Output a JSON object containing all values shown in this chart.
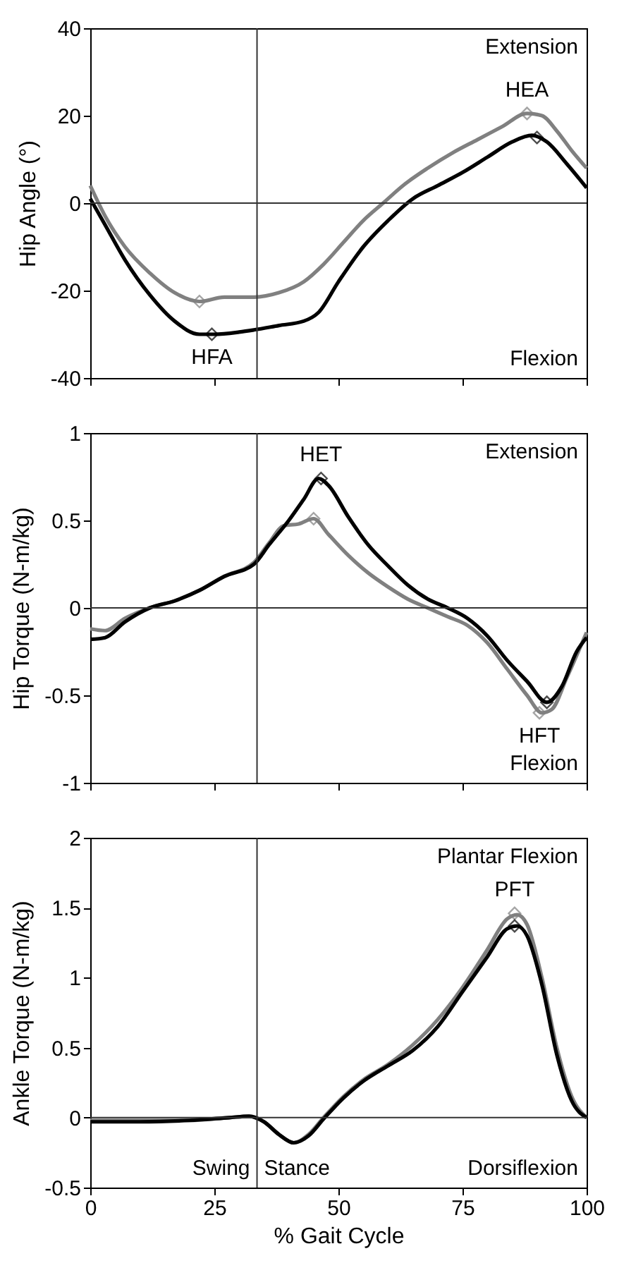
{
  "chart_data": [
    {
      "type": "line",
      "ylabel": "Hip Angle (°)",
      "xlim": [
        0,
        100
      ],
      "xticks": [
        0,
        25,
        50,
        75,
        100
      ],
      "ylim": [
        -40,
        40
      ],
      "yticks": [
        -40,
        -20,
        0,
        20,
        40
      ],
      "tick_labels": "y",
      "grid": false,
      "line_style": "solid",
      "series": [
        {
          "color": "#808080",
          "x": [
            0,
            3,
            7,
            12,
            17,
            22,
            27,
            33,
            38,
            43,
            47,
            51,
            55,
            59,
            63,
            68,
            73,
            78,
            83,
            88,
            91,
            94,
            97,
            100
          ],
          "values": [
            4,
            -3,
            -10,
            -16,
            -20.5,
            -22.5,
            -21.5,
            -21.5,
            -20.5,
            -18,
            -14,
            -9,
            -4,
            0,
            4,
            8,
            11.5,
            14.5,
            17.5,
            20.5,
            20,
            16.5,
            12,
            8
          ]
        },
        {
          "color": "#000000",
          "x": [
            0,
            3,
            7,
            12,
            17,
            22,
            25,
            30,
            33,
            38,
            43,
            46,
            50,
            55,
            60,
            65,
            70,
            75,
            80,
            85,
            89,
            92,
            96,
            100
          ],
          "values": [
            1,
            -5,
            -13,
            -21,
            -27,
            -30,
            -30,
            -29.5,
            -29,
            -28,
            -27,
            -25,
            -18,
            -10,
            -4,
            1,
            4,
            7,
            10.5,
            14,
            15.5,
            14,
            9,
            3.5
          ]
        },
        {
          "type": "scatter",
          "marker": "diamond",
          "color": "#808080",
          "x": [
            22,
            88
          ],
          "values": [
            -22.5,
            20.5
          ]
        },
        {
          "type": "scatter",
          "marker": "diamond",
          "color": "#000000",
          "x": [
            24.5,
            90
          ],
          "values": [
            -30,
            15
          ]
        }
      ],
      "ref_lines": [
        {
          "axis": "y",
          "value": 0
        },
        {
          "axis": "x",
          "value": 33.6
        }
      ],
      "annotations": [
        "Extension",
        "Flexion",
        {
          "text": "HFA",
          "x": 24.5,
          "y": -30
        },
        {
          "text": "HEA",
          "x": 88,
          "y": 20.5
        }
      ]
    },
    {
      "type": "line",
      "ylabel": "Hip Torque (N-m/kg)",
      "xlim": [
        0,
        100
      ],
      "xticks": [
        0,
        25,
        50,
        75,
        100
      ],
      "ylim": [
        -1,
        1
      ],
      "yticks": [
        -1,
        -0.5,
        0,
        0.5,
        1
      ],
      "tick_labels": "y",
      "grid": false,
      "line_style": "solid",
      "series": [
        {
          "color": "#808080",
          "x": [
            0,
            3,
            7,
            12,
            17,
            22,
            27,
            33,
            36,
            39,
            42,
            45,
            48,
            52,
            56,
            60,
            64,
            68,
            72,
            76,
            80,
            84,
            88,
            91,
            93,
            96,
            100
          ],
          "values": [
            -0.12,
            -0.13,
            -0.06,
            0,
            0.04,
            0.1,
            0.18,
            0.26,
            0.37,
            0.47,
            0.48,
            0.51,
            0.42,
            0.3,
            0.2,
            0.12,
            0.05,
            0,
            -0.05,
            -0.1,
            -0.2,
            -0.35,
            -0.5,
            -0.6,
            -0.58,
            -0.4,
            -0.14
          ]
        },
        {
          "color": "#000000",
          "x": [
            0,
            3,
            7,
            12,
            17,
            22,
            27,
            33,
            36,
            40,
            43,
            46,
            48,
            52,
            56,
            60,
            64,
            68,
            72,
            76,
            80,
            84,
            88,
            92,
            95,
            98,
            100
          ],
          "values": [
            -0.18,
            -0.17,
            -0.08,
            0,
            0.04,
            0.1,
            0.18,
            0.25,
            0.36,
            0.5,
            0.62,
            0.74,
            0.7,
            0.52,
            0.36,
            0.24,
            0.13,
            0.05,
            0,
            -0.06,
            -0.16,
            -0.3,
            -0.42,
            -0.54,
            -0.45,
            -0.25,
            -0.17
          ]
        },
        {
          "type": "scatter",
          "marker": "diamond",
          "color": "#808080",
          "x": [
            45,
            90.5
          ],
          "values": [
            0.51,
            -0.6
          ]
        },
        {
          "type": "scatter",
          "marker": "diamond",
          "color": "#000000",
          "x": [
            46.5,
            92
          ],
          "values": [
            0.74,
            -0.54
          ]
        }
      ],
      "ref_lines": [
        {
          "axis": "y",
          "value": 0
        },
        {
          "axis": "x",
          "value": 33.6
        }
      ],
      "annotations": [
        "Extension",
        "Flexion",
        {
          "text": "HET",
          "x": 46.5,
          "y": 0.74
        },
        {
          "text": "HFT",
          "x": 90.5,
          "y": -0.6
        }
      ]
    },
    {
      "type": "line",
      "xlabel": "% Gait Cycle",
      "ylabel": "Ankle Torque (N-m/kg)",
      "xlim": [
        0,
        100
      ],
      "xticks": [
        0,
        25,
        50,
        75,
        100
      ],
      "ylim": [
        -0.5,
        2
      ],
      "yticks": [
        -0.5,
        0,
        0.5,
        1,
        1.5,
        2
      ],
      "grid": false,
      "line_style": "solid",
      "series": [
        {
          "color": "#808080",
          "x": [
            0,
            10,
            20,
            28,
            32,
            35,
            38,
            41,
            44,
            47,
            51,
            55,
            60,
            65,
            70,
            75,
            80,
            84,
            86,
            88,
            91,
            94,
            97,
            100
          ],
          "values": [
            -0.02,
            -0.02,
            -0.02,
            0,
            0.01,
            -0.03,
            -0.12,
            -0.18,
            -0.12,
            0,
            0.15,
            0.27,
            0.38,
            0.52,
            0.7,
            0.93,
            1.2,
            1.42,
            1.45,
            1.38,
            1,
            0.5,
            0.15,
            0
          ]
        },
        {
          "color": "#000000",
          "x": [
            0,
            10,
            20,
            28,
            32,
            35,
            38,
            41,
            44,
            47,
            51,
            55,
            60,
            65,
            70,
            75,
            80,
            84,
            86,
            88,
            91,
            94,
            97,
            100
          ],
          "values": [
            -0.03,
            -0.03,
            -0.02,
            0,
            0.01,
            -0.03,
            -0.12,
            -0.18,
            -0.13,
            -0.01,
            0.14,
            0.26,
            0.37,
            0.48,
            0.65,
            0.9,
            1.15,
            1.35,
            1.37,
            1.3,
            0.95,
            0.45,
            0.12,
            0
          ]
        },
        {
          "type": "scatter",
          "marker": "diamond",
          "color": "#808080",
          "x": [
            85.5
          ],
          "values": [
            1.46
          ]
        },
        {
          "type": "scatter",
          "marker": "diamond",
          "color": "#000000",
          "x": [
            85.5
          ],
          "values": [
            1.37
          ]
        }
      ],
      "ref_lines": [
        {
          "axis": "y",
          "value": 0
        },
        {
          "axis": "x",
          "value": 33.6
        }
      ],
      "annotations": [
        "Plantar Flexion",
        "Dorsiflexion",
        "Swing",
        "Stance",
        {
          "text": "PFT",
          "x": 85.5,
          "y": 1.46
        }
      ]
    }
  ]
}
